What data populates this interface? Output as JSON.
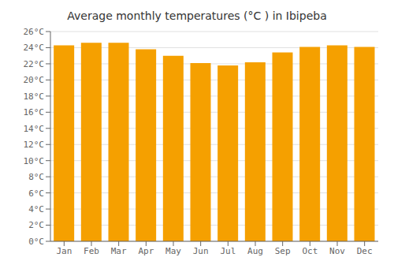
{
  "chart_data": {
    "type": "bar",
    "title": "Average monthly temperatures (°C ) in Ibipeba",
    "categories": [
      "Jan",
      "Feb",
      "Mar",
      "Apr",
      "May",
      "Jun",
      "Jul",
      "Aug",
      "Sep",
      "Oct",
      "Nov",
      "Dec"
    ],
    "values": [
      24.3,
      24.6,
      24.6,
      23.8,
      23.0,
      22.1,
      21.8,
      22.2,
      23.4,
      24.1,
      24.3,
      24.1
    ],
    "color": "#F5A000",
    "ylim": [
      0,
      26
    ],
    "yticks": [
      {
        "value": 0,
        "label": "0°C"
      },
      {
        "value": 2,
        "label": "2°C"
      },
      {
        "value": 4,
        "label": "4°C"
      },
      {
        "value": 6,
        "label": "6°C"
      },
      {
        "value": 8,
        "label": "8°C"
      },
      {
        "value": 10,
        "label": "10°C"
      },
      {
        "value": 12,
        "label": "12°C"
      },
      {
        "value": 14,
        "label": "14°C"
      },
      {
        "value": 16,
        "label": "16°C"
      },
      {
        "value": 18,
        "label": "18°C"
      },
      {
        "value": 20,
        "label": "20°C"
      },
      {
        "value": 22,
        "label": "22°C"
      },
      {
        "value": 24,
        "label": "24°C"
      },
      {
        "value": 26,
        "label": "26°C"
      }
    ],
    "grid": true
  }
}
